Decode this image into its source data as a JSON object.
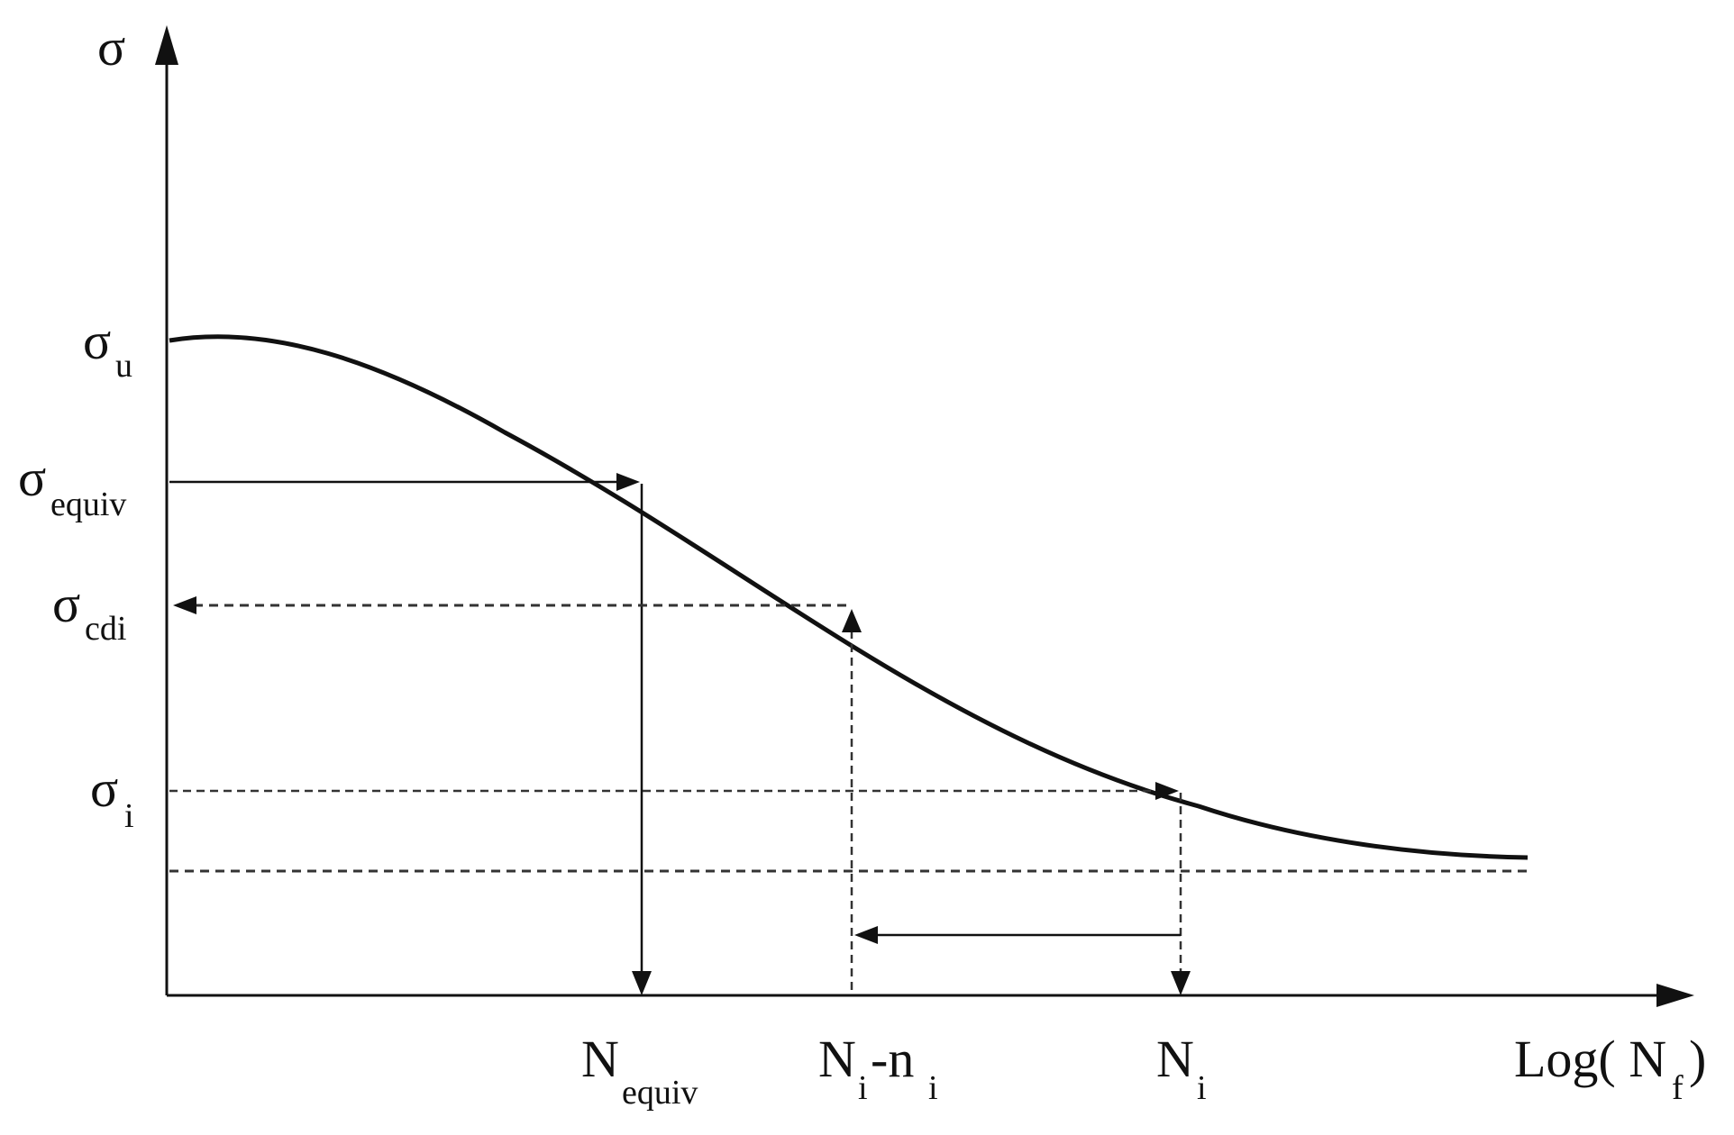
{
  "y_axis": {
    "symbol": "σ"
  },
  "x_axis": {
    "label_main": "Log( N",
    "label_sub": "f",
    "label_close": ")"
  },
  "y_labels": {
    "sigma_u": {
      "main": "σ",
      "sub": "u"
    },
    "sigma_equiv": {
      "main": "σ",
      "sub": "equiv"
    },
    "sigma_cdi": {
      "main": "σ",
      "sub": "cdi"
    },
    "sigma_i": {
      "main": "σ",
      "sub": "i"
    }
  },
  "x_labels": {
    "n_equiv": {
      "main": "N",
      "sub": "equiv"
    },
    "ni_minus_ni": {
      "main1": "N",
      "sub1": "i",
      "dash": "-n",
      "sub2": "i"
    },
    "n_i": {
      "main": "N",
      "sub": "i"
    }
  },
  "colors": {
    "ink": "#111111",
    "dashed": "#333333",
    "background": "#ffffff"
  }
}
